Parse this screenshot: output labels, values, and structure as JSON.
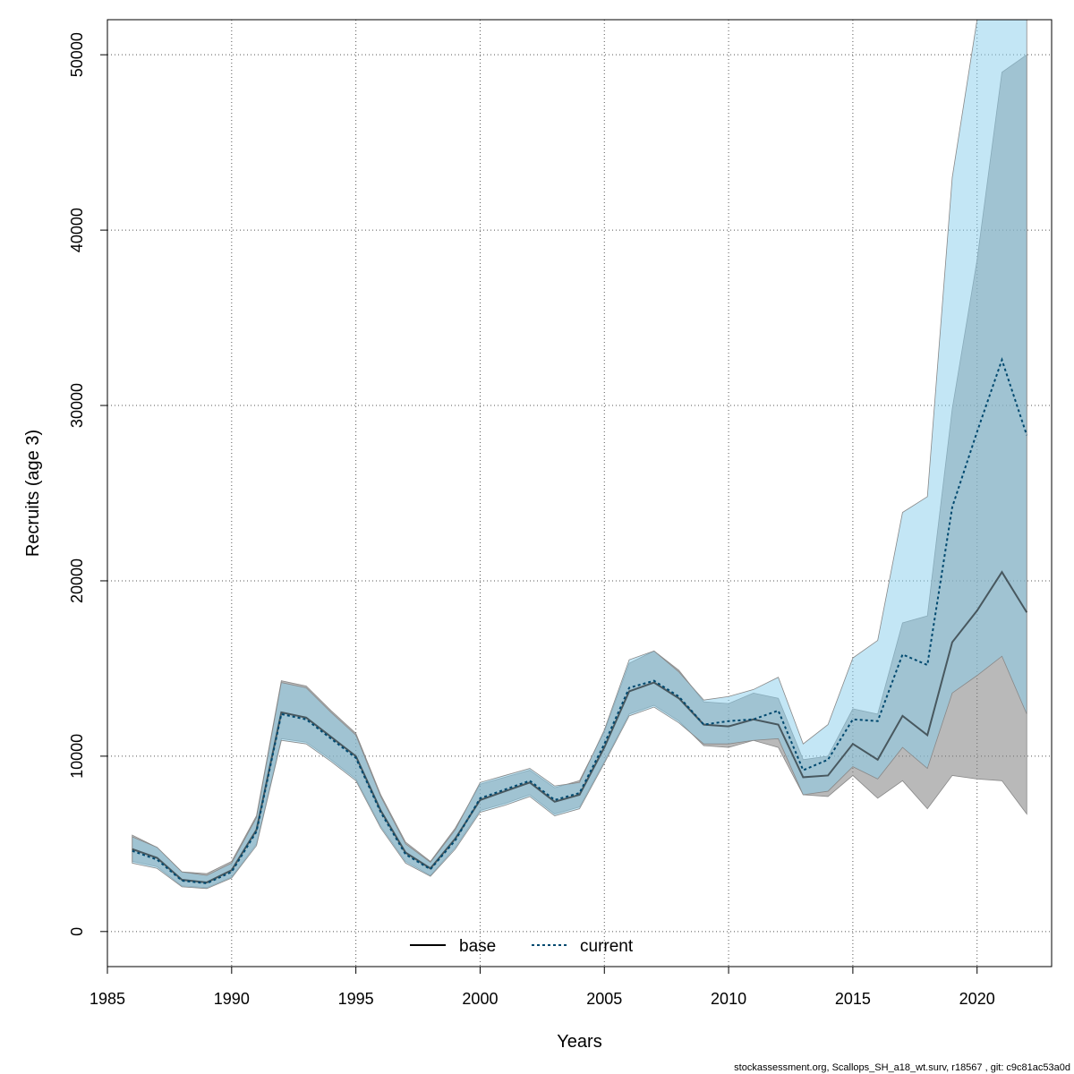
{
  "chart_data": {
    "type": "line",
    "xlabel": "Years",
    "ylabel": "Recruits (age 3)",
    "xlim": [
      1985,
      2023
    ],
    "ylim": [
      -2000,
      52000
    ],
    "grid": true,
    "legend_position": "bottom-center",
    "x_ticks": [
      1985,
      1990,
      1995,
      2000,
      2005,
      2010,
      2015,
      2020
    ],
    "x_tick_labels": [
      "1985",
      "1990",
      "1995",
      "2000",
      "2005",
      "2010",
      "2015",
      "2020"
    ],
    "y_ticks": [
      0,
      10000,
      20000,
      30000,
      40000,
      50000
    ],
    "y_tick_labels": [
      "0",
      "10000",
      "20000",
      "30000",
      "40000",
      "50000"
    ],
    "x": [
      1986,
      1987,
      1988,
      1989,
      1990,
      1991,
      1992,
      1993,
      1994,
      1995,
      1996,
      1997,
      1998,
      1999,
      2000,
      2001,
      2002,
      2003,
      2004,
      2005,
      2006,
      2007,
      2008,
      2009,
      2010,
      2011,
      2012,
      2013,
      2014,
      2015,
      2016,
      2017,
      2018,
      2019,
      2020,
      2021,
      2022
    ],
    "series": [
      {
        "name": "base",
        "line_style": "solid",
        "color": "#000000",
        "band_color": "#808080",
        "values": [
          4700,
          4200,
          2950,
          2800,
          3500,
          5800,
          12500,
          12200,
          11100,
          10000,
          6900,
          4500,
          3600,
          5300,
          7500,
          8000,
          8500,
          7400,
          7800,
          10500,
          13700,
          14200,
          13300,
          11800,
          11700,
          12100,
          11800,
          8800,
          8900,
          10700,
          9800,
          12300,
          11200,
          16500,
          18300,
          20500,
          18200
        ],
        "lower": [
          4000,
          3700,
          2600,
          2500,
          3100,
          5000,
          11000,
          10800,
          9800,
          8700,
          6000,
          4000,
          3200,
          4800,
          6900,
          7300,
          7800,
          6700,
          7100,
          9700,
          12400,
          12900,
          12000,
          10600,
          10500,
          10900,
          10500,
          7800,
          7700,
          8900,
          7600,
          8600,
          7000,
          8900,
          8700,
          8600,
          6700
        ],
        "upper": [
          5500,
          4800,
          3400,
          3300,
          4000,
          6600,
          14300,
          14000,
          12600,
          11300,
          7800,
          5100,
          4000,
          5900,
          8400,
          8800,
          9200,
          8200,
          8600,
          11400,
          15300,
          16000,
          14900,
          13100,
          13000,
          13600,
          13300,
          9800,
          10000,
          12700,
          12400,
          17600,
          18000,
          29800,
          38300,
          49000,
          50000
        ]
      },
      {
        "name": "current",
        "line_style": "dotted",
        "color": "#00496F",
        "band_color": "#87CEEB",
        "values": [
          4600,
          4100,
          2900,
          2750,
          3400,
          5700,
          12400,
          12100,
          11000,
          9900,
          6800,
          4400,
          3550,
          5200,
          7600,
          8100,
          8600,
          7500,
          7900,
          10700,
          13900,
          14300,
          13400,
          11800,
          12000,
          12100,
          12600,
          9200,
          9800,
          12100,
          12000,
          15800,
          15200,
          24200,
          28500,
          32600,
          28300
        ],
        "lower": [
          3900,
          3600,
          2550,
          2450,
          3050,
          4900,
          10900,
          10700,
          9700,
          8600,
          5900,
          3900,
          3150,
          4700,
          6800,
          7200,
          7700,
          6600,
          7000,
          9600,
          12300,
          12800,
          11900,
          10700,
          10700,
          10900,
          11000,
          7800,
          8000,
          9400,
          8700,
          10500,
          9300,
          13600,
          14600,
          15700,
          12400
        ],
        "upper": [
          5400,
          4800,
          3400,
          3200,
          3900,
          6500,
          14200,
          13900,
          12500,
          11200,
          7700,
          5000,
          3950,
          5800,
          8500,
          8900,
          9300,
          8300,
          8500,
          11500,
          15500,
          16000,
          14800,
          13200,
          13400,
          13800,
          14500,
          10700,
          11800,
          15600,
          16600,
          23900,
          24800,
          43000,
          52000,
          52000,
          52000
        ]
      }
    ]
  },
  "legend": {
    "items": [
      {
        "label": "base",
        "style": "solid",
        "color": "#000000"
      },
      {
        "label": "current",
        "style": "dotted",
        "color": "#00496F"
      }
    ]
  },
  "footer": {
    "text": "stockassessment.org, Scallops_SH_a18_wt.surv, r18567 , git: c9c81ac53a0d"
  }
}
